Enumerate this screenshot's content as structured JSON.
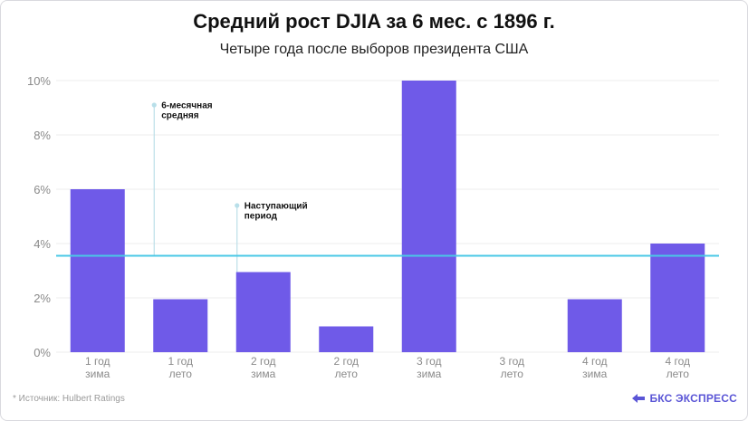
{
  "chart_data": {
    "type": "bar",
    "title": "Средний рост DJIA за 6 мес. с 1896 г.",
    "subtitle": "Четыре года после выборов президента США",
    "categories": [
      [
        "1 год",
        "зима"
      ],
      [
        "1 год",
        "лето"
      ],
      [
        "2 год",
        "зима"
      ],
      [
        "2 год",
        "лето"
      ],
      [
        "3 год",
        "зима"
      ],
      [
        "3 год",
        "лето"
      ],
      [
        "4 год",
        "зима"
      ],
      [
        "4 год",
        "лето"
      ]
    ],
    "values": [
      6.0,
      1.95,
      2.95,
      0.95,
      10.0,
      0.0,
      1.95,
      4.0
    ],
    "ylim": [
      0,
      10
    ],
    "yticks": [
      0,
      2,
      4,
      6,
      8,
      10
    ],
    "ytick_labels": [
      "0%",
      "2%",
      "4%",
      "6%",
      "8%",
      "10%"
    ],
    "average": 3.55,
    "annotations": [
      {
        "text": [
          "6-месячная",
          "средняя"
        ],
        "category_index": 1,
        "y": 9.1,
        "target_y": 3.55
      },
      {
        "text": [
          "Наступающий",
          "период"
        ],
        "category_index": 2,
        "y": 5.4,
        "target_y": 2.95
      }
    ],
    "colors": {
      "bar": "#6f5ae8",
      "average_line": "#4ac8e6",
      "grid": "#eeeeee"
    }
  },
  "footnote": "*  Источник: Hulbert Ratings",
  "brand": "БКС ЭКСПРЕСС"
}
